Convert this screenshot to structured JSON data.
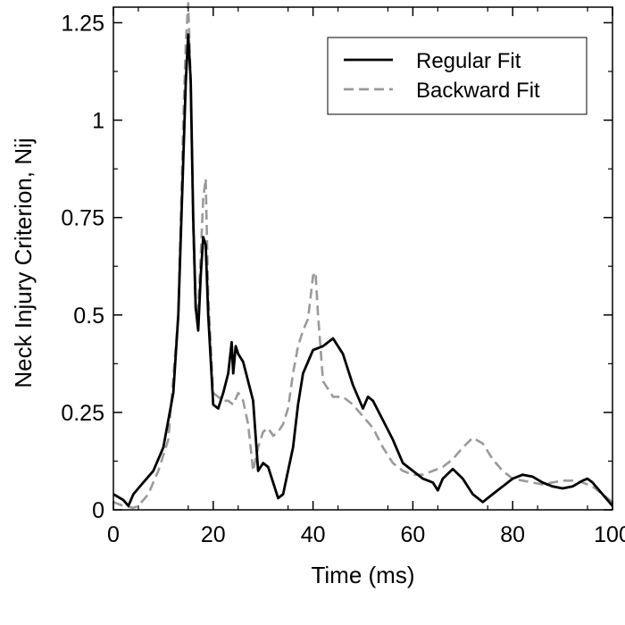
{
  "chart_data": {
    "type": "line",
    "title": "",
    "xlabel": "Time (ms)",
    "ylabel": "Neck Injury Criterion, Nij",
    "xlim": [
      0,
      100
    ],
    "ylim": [
      0,
      1.29
    ],
    "xticks": [
      0,
      20,
      40,
      60,
      80,
      100
    ],
    "xtick_labels": [
      "0",
      "20",
      "40",
      "60",
      "80",
      "100"
    ],
    "yticks": [
      0,
      0.25,
      0.5,
      0.75,
      1,
      1.25
    ],
    "ytick_labels": [
      "0",
      "0.25",
      "0.5",
      "0.75",
      "1",
      "1.25"
    ],
    "grid": false,
    "legend": "top-right",
    "series": [
      {
        "name": "Regular Fit",
        "color": "#000000",
        "dash": "solid",
        "x": [
          0,
          2,
          3,
          4,
          6,
          8,
          10,
          12,
          13,
          14,
          14.5,
          15,
          15.5,
          16,
          16.5,
          17,
          17.5,
          18,
          18.5,
          19,
          20,
          21,
          22,
          23,
          23.7,
          24,
          24.5,
          25,
          26,
          27,
          28,
          29,
          30,
          31,
          32,
          33,
          34,
          35,
          36,
          37,
          38,
          40,
          42,
          44,
          46,
          48,
          50,
          51,
          52,
          54,
          56,
          58,
          60,
          62,
          64,
          65,
          66,
          68,
          70,
          72,
          74,
          76,
          78,
          80,
          82,
          84,
          86,
          88,
          90,
          92,
          94,
          95,
          96,
          98,
          100
        ],
        "y": [
          0.04,
          0.025,
          0.01,
          0.04,
          0.07,
          0.1,
          0.16,
          0.3,
          0.5,
          0.9,
          1.1,
          1.22,
          1.1,
          0.75,
          0.52,
          0.46,
          0.6,
          0.7,
          0.68,
          0.5,
          0.27,
          0.26,
          0.3,
          0.35,
          0.43,
          0.35,
          0.42,
          0.4,
          0.38,
          0.33,
          0.28,
          0.1,
          0.12,
          0.11,
          0.07,
          0.03,
          0.04,
          0.1,
          0.16,
          0.27,
          0.35,
          0.41,
          0.42,
          0.44,
          0.4,
          0.32,
          0.26,
          0.29,
          0.28,
          0.23,
          0.18,
          0.12,
          0.1,
          0.08,
          0.07,
          0.05,
          0.08,
          0.105,
          0.08,
          0.04,
          0.02,
          0.04,
          0.06,
          0.08,
          0.09,
          0.085,
          0.07,
          0.06,
          0.055,
          0.06,
          0.075,
          0.08,
          0.07,
          0.04,
          0.01
        ]
      },
      {
        "name": "Backward Fit",
        "color": "#9a9a9a",
        "dash": "dashed",
        "x": [
          0,
          2,
          4,
          5,
          7,
          9,
          11,
          13,
          14,
          14.5,
          15,
          15.5,
          16,
          16.5,
          17,
          17.5,
          18,
          18.5,
          19,
          20,
          22,
          23,
          24,
          25,
          26,
          27,
          28,
          29,
          30,
          31,
          32,
          33,
          34,
          35,
          36,
          37,
          38,
          39,
          40,
          40.5,
          41,
          42,
          44,
          46,
          48,
          50,
          52,
          54,
          56,
          58,
          60,
          62,
          64,
          66,
          68,
          70,
          72,
          74,
          76,
          78,
          80,
          82,
          84,
          86,
          88,
          90,
          92,
          94,
          96,
          98,
          100
        ],
        "y": [
          0.02,
          0.01,
          0.005,
          0.01,
          0.04,
          0.1,
          0.18,
          0.5,
          1.0,
          1.2,
          1.3,
          1.1,
          0.72,
          0.5,
          0.52,
          0.65,
          0.8,
          0.85,
          0.55,
          0.3,
          0.28,
          0.28,
          0.27,
          0.3,
          0.28,
          0.22,
          0.1,
          0.16,
          0.2,
          0.21,
          0.19,
          0.2,
          0.22,
          0.26,
          0.35,
          0.42,
          0.46,
          0.49,
          0.6,
          0.61,
          0.5,
          0.33,
          0.29,
          0.29,
          0.27,
          0.24,
          0.21,
          0.16,
          0.12,
          0.1,
          0.09,
          0.09,
          0.1,
          0.11,
          0.13,
          0.16,
          0.185,
          0.17,
          0.13,
          0.1,
          0.08,
          0.075,
          0.07,
          0.065,
          0.07,
          0.075,
          0.075,
          0.07,
          0.06,
          0.04,
          0.02
        ]
      }
    ]
  }
}
